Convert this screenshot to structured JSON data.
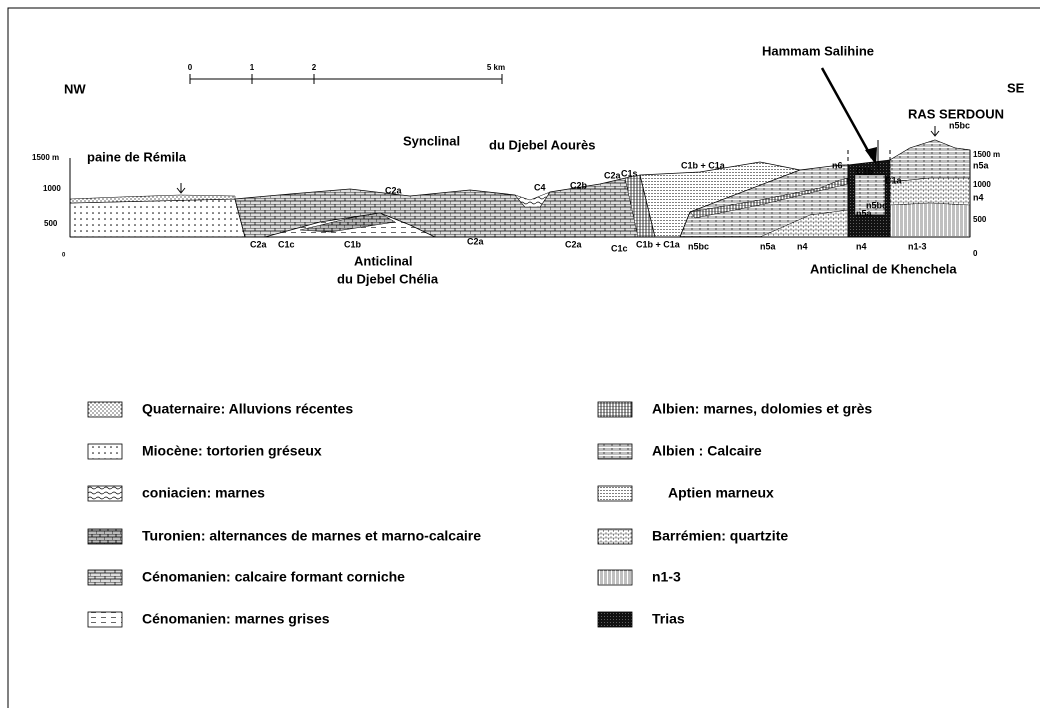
{
  "orientation": {
    "left": "NW",
    "right": "SE"
  },
  "scale_bar": {
    "ticks": [
      "0",
      "1",
      "2",
      "5 km"
    ]
  },
  "places": [
    "Hammam Salihine",
    "RAS  SERDOUN",
    "Synclinal",
    "du Djebel Aourès",
    "paine de Rémila",
    "Anticlinal",
    "du Djebel Chélia",
    "Anticlinal de Khenchela"
  ],
  "elevations": {
    "left": [
      "1500 m",
      "1000",
      "500",
      "0"
    ],
    "right": [
      "1500 m",
      "1000",
      "500",
      "0"
    ]
  },
  "units": [
    "C2a",
    "C1c",
    "C1b",
    "C2a",
    "C2a",
    "C2a",
    "C1c",
    "C1b + C1a",
    "n5bc",
    "n5a",
    "n4",
    "n4",
    "n1-3",
    "C4",
    "C2b",
    "C2a",
    "C1s",
    "C1b + C1a",
    "n6",
    "C1b",
    "C1a",
    "n5a",
    "n4",
    "n5bc",
    "n5a",
    "n5bc"
  ],
  "legend": {
    "left": [
      "Quaternaire: Alluvions récentes",
      "Miocène: tortorien gréseux",
      "coniacien: marnes",
      "Turonien: alternances de  marnes et marno-calcaire",
      "Cénomanien: calcaire formant corniche",
      "Cénomanien: marnes grises"
    ],
    "right": [
      "Albien: marnes, dolomies et grès",
      "Albien : Calcaire",
      "Aptien marneux",
      "Barrémien: quartzite",
      "n1-3",
      "Trias"
    ]
  }
}
